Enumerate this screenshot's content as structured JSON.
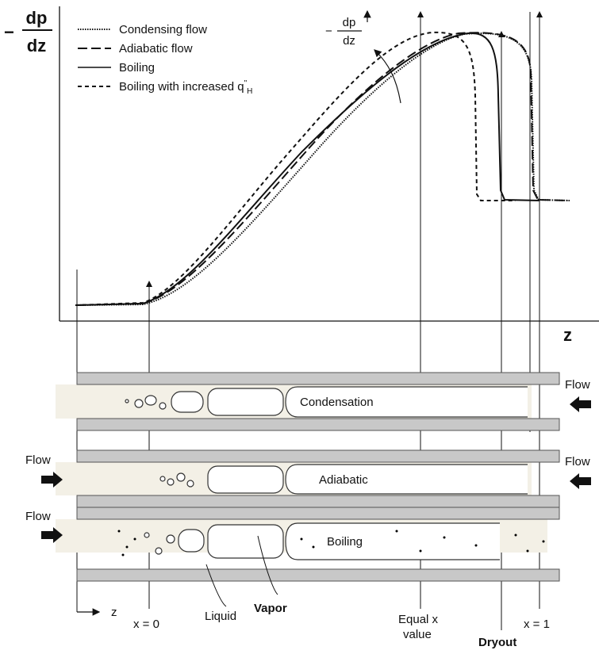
{
  "plot": {
    "y_label": {
      "sign": "−",
      "numerator": "dp",
      "denominator": "dz"
    },
    "legend": [
      {
        "label": "Condensing flow"
      },
      {
        "label": "Adiabatic flow"
      },
      {
        "label": "Boiling"
      },
      {
        "label": "Boiling with increased q",
        "superscript": "\"",
        "subscript": "H"
      }
    ],
    "annotation": {
      "sign": "−",
      "numerator": "dp",
      "denominator": "dz"
    },
    "x_label": "z"
  },
  "tubes": [
    {
      "label": "Condensation",
      "flow_right": "Flow"
    },
    {
      "label": "Adiabatic",
      "flow_left": "Flow",
      "flow_right": "Flow"
    },
    {
      "label": "Boiling",
      "flow_left": "Flow"
    }
  ],
  "markers": {
    "z": "z",
    "x0": "x = 0",
    "liquid": "Liquid",
    "vapor": "Vapor",
    "equal_x": [
      "Equal x",
      "value"
    ],
    "x1": "x = 1",
    "dryout": "Dryout"
  }
}
